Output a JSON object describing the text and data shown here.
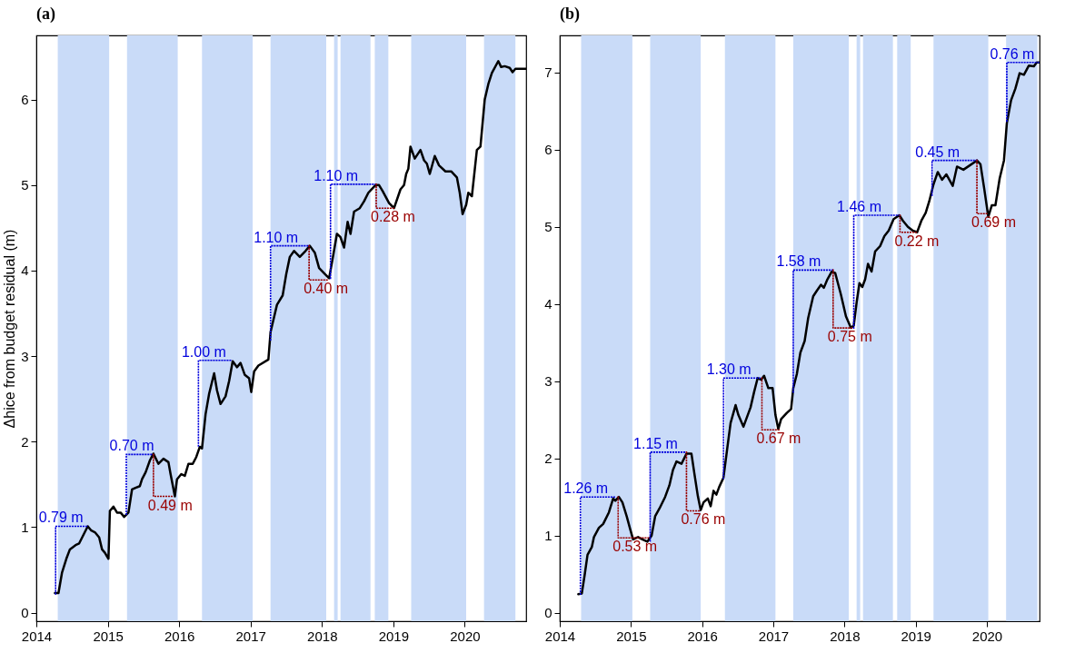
{
  "chart_data": [
    {
      "type": "line",
      "title": "(a)",
      "ylabel": "Δhice from budget residual (m)",
      "xlim": [
        2014,
        2020.86
      ],
      "xticks": [
        2014,
        2015,
        2016,
        2017,
        2018,
        2019,
        2020
      ],
      "ylim": [
        -0.1,
        6.75
      ],
      "yticks": [
        0,
        1,
        2,
        3,
        4,
        5,
        6
      ],
      "grid": false,
      "bands": [
        {
          "axis": "x",
          "from": 2014.3,
          "to": 2015.02,
          "color": "#c9dbf8"
        },
        {
          "axis": "x",
          "from": 2015.27,
          "to": 2015.98,
          "color": "#c9dbf8"
        },
        {
          "axis": "x",
          "from": 2016.32,
          "to": 2017.03,
          "color": "#c9dbf8"
        },
        {
          "axis": "x",
          "from": 2017.28,
          "to": 2018.06,
          "color": "#c9dbf8"
        },
        {
          "axis": "x",
          "from": 2018.17,
          "to": 2018.22,
          "color": "#c9dbf8"
        },
        {
          "axis": "x",
          "from": 2018.26,
          "to": 2018.68,
          "color": "#c9dbf8"
        },
        {
          "axis": "x",
          "from": 2018.74,
          "to": 2018.93,
          "color": "#c9dbf8"
        },
        {
          "axis": "x",
          "from": 2019.25,
          "to": 2020.02,
          "color": "#c9dbf8"
        },
        {
          "axis": "x",
          "from": 2020.27,
          "to": 2020.71,
          "color": "#c9dbf8"
        }
      ],
      "series": [
        {
          "color": "#000000",
          "x": [
            2014.26,
            2014.31,
            2014.36,
            2014.42,
            2014.47,
            2014.55,
            2014.6,
            2014.72,
            2014.77,
            2014.82,
            2014.88,
            2014.92,
            2014.96,
            2015.01,
            2015.03,
            2015.08,
            2015.13,
            2015.18,
            2015.23,
            2015.29,
            2015.34,
            2015.39,
            2015.45,
            2015.48,
            2015.53,
            2015.59,
            2015.64,
            2015.71,
            2015.78,
            2015.85,
            2015.88,
            2015.94,
            2015.97,
            2016.03,
            2016.08,
            2016.13,
            2016.19,
            2016.24,
            2016.29,
            2016.32,
            2016.37,
            2016.42,
            2016.49,
            2016.53,
            2016.58,
            2016.65,
            2016.7,
            2016.75,
            2016.81,
            2016.86,
            2016.92,
            2016.98,
            2017.01,
            2017.05,
            2017.11,
            2017.25,
            2017.28,
            2017.37,
            2017.45,
            2017.5,
            2017.55,
            2017.61,
            2017.69,
            2017.77,
            2017.83,
            2017.9,
            2017.96,
            2018.04,
            2018.1,
            2018.15,
            2018.21,
            2018.26,
            2018.31,
            2018.36,
            2018.4,
            2018.45,
            2018.53,
            2018.59,
            2018.65,
            2018.75,
            2018.8,
            2018.85,
            2018.94,
            2019.01,
            2019.1,
            2019.15,
            2019.18,
            2019.21,
            2019.24,
            2019.3,
            2019.38,
            2019.43,
            2019.47,
            2019.51,
            2019.58,
            2019.64,
            2019.73,
            2019.81,
            2019.89,
            2019.93,
            2019.97,
            2020.02,
            2020.05,
            2020.1,
            2020.17,
            2020.22,
            2020.28,
            2020.33,
            2020.38,
            2020.47,
            2020.51,
            2020.56,
            2020.63,
            2020.67,
            2020.71,
            2020.86
          ],
          "values": [
            0.23,
            0.23,
            0.47,
            0.63,
            0.74,
            0.79,
            0.81,
            1.01,
            0.96,
            0.94,
            0.88,
            0.74,
            0.7,
            0.63,
            1.19,
            1.24,
            1.17,
            1.17,
            1.12,
            1.17,
            1.44,
            1.46,
            1.48,
            1.56,
            1.64,
            1.78,
            1.86,
            1.74,
            1.8,
            1.76,
            1.62,
            1.36,
            1.56,
            1.62,
            1.6,
            1.74,
            1.74,
            1.82,
            1.94,
            1.92,
            2.32,
            2.56,
            2.8,
            2.6,
            2.44,
            2.53,
            2.71,
            2.94,
            2.87,
            2.92,
            2.78,
            2.74,
            2.58,
            2.82,
            2.89,
            2.96,
            3.28,
            3.6,
            3.71,
            3.96,
            4.16,
            4.23,
            4.16,
            4.23,
            4.29,
            4.21,
            4.03,
            3.96,
            3.91,
            4.14,
            4.43,
            4.39,
            4.27,
            4.57,
            4.43,
            4.69,
            4.73,
            4.81,
            4.91,
            5.0,
            5.0,
            4.93,
            4.79,
            4.73,
            4.95,
            5.0,
            5.13,
            5.19,
            5.45,
            5.31,
            5.41,
            5.29,
            5.25,
            5.13,
            5.34,
            5.23,
            5.16,
            5.16,
            5.09,
            4.91,
            4.66,
            4.77,
            4.91,
            4.87,
            5.41,
            5.45,
            6.0,
            6.18,
            6.31,
            6.45,
            6.38,
            6.39,
            6.37,
            6.32,
            6.36,
            6.36
          ]
        },
        {
          "type": "line",
          "color": "#0000dd",
          "line_style": "dotted",
          "x": [
            2014.27,
            2014.27,
            2014.71
          ],
          "values": [
            0.22,
            1.01,
            1.01
          ]
        },
        {
          "type": "line",
          "color": "#0000dd",
          "line_style": "dotted",
          "x": [
            2015.26,
            2015.26,
            2015.64
          ],
          "values": [
            1.15,
            1.85,
            1.85
          ]
        },
        {
          "type": "line",
          "color": "#990000",
          "line_style": "dotted",
          "x": [
            2015.64,
            2015.64,
            2015.93
          ],
          "values": [
            1.85,
            1.36,
            1.36
          ]
        },
        {
          "type": "line",
          "color": "#0000dd",
          "line_style": "dotted",
          "x": [
            2016.27,
            2016.27,
            2016.75
          ],
          "values": [
            1.95,
            2.95,
            2.95
          ]
        },
        {
          "type": "line",
          "color": "#0000dd",
          "line_style": "dotted",
          "x": [
            2017.28,
            2017.28,
            2017.82
          ],
          "values": [
            3.19,
            4.29,
            4.29
          ]
        },
        {
          "type": "line",
          "color": "#990000",
          "line_style": "dotted",
          "x": [
            2017.82,
            2017.82,
            2018.09
          ],
          "values": [
            4.29,
            3.89,
            3.89
          ]
        },
        {
          "type": "line",
          "color": "#0000dd",
          "line_style": "dotted",
          "x": [
            2018.12,
            2018.12,
            2018.76
          ],
          "values": [
            3.91,
            5.01,
            5.01
          ]
        },
        {
          "type": "line",
          "color": "#990000",
          "line_style": "dotted",
          "x": [
            2018.76,
            2018.76,
            2019.01
          ],
          "values": [
            5.01,
            4.73,
            4.73
          ]
        }
      ],
      "annotations": [
        {
          "text": "0.79 m",
          "x": 2014.27,
          "y": 1.01
        },
        {
          "text": "0.70 m",
          "x": 2015.26,
          "y": 1.85
        },
        {
          "text": "0.49 m",
          "x": 2015.64,
          "y": 1.36
        },
        {
          "text": "1.00 m",
          "x": 2016.27,
          "y": 2.95
        },
        {
          "text": "1.10 m",
          "x": 2017.28,
          "y": 4.29
        },
        {
          "text": "0.40 m",
          "x": 2017.82,
          "y": 3.89
        },
        {
          "text": "1.10 m",
          "x": 2018.12,
          "y": 5.01
        },
        {
          "text": "0.28 m",
          "x": 2018.76,
          "y": 4.73
        }
      ]
    },
    {
      "type": "line",
      "title": "(b)",
      "xlim": [
        2014,
        2020.74
      ],
      "xticks": [
        2014,
        2015,
        2016,
        2017,
        2018,
        2019,
        2020
      ],
      "ylim": [
        -0.11,
        7.48
      ],
      "yticks": [
        0,
        1,
        2,
        3,
        4,
        5,
        6,
        7
      ],
      "grid": false,
      "bands": [
        {
          "axis": "x",
          "from": 2014.3,
          "to": 2015.02,
          "color": "#c9dbf8"
        },
        {
          "axis": "x",
          "from": 2015.27,
          "to": 2015.98,
          "color": "#c9dbf8"
        },
        {
          "axis": "x",
          "from": 2016.32,
          "to": 2017.03,
          "color": "#c9dbf8"
        },
        {
          "axis": "x",
          "from": 2017.28,
          "to": 2018.06,
          "color": "#c9dbf8"
        },
        {
          "axis": "x",
          "from": 2018.17,
          "to": 2018.22,
          "color": "#c9dbf8"
        },
        {
          "axis": "x",
          "from": 2018.26,
          "to": 2018.68,
          "color": "#c9dbf8"
        },
        {
          "axis": "x",
          "from": 2018.74,
          "to": 2018.93,
          "color": "#c9dbf8"
        },
        {
          "axis": "x",
          "from": 2019.25,
          "to": 2020.02,
          "color": "#c9dbf8"
        },
        {
          "axis": "x",
          "from": 2020.27,
          "to": 2020.71,
          "color": "#c9dbf8"
        }
      ],
      "series": [
        {
          "color": "#000000",
          "x": [
            2014.26,
            2014.31,
            2014.35,
            2014.39,
            2014.45,
            2014.48,
            2014.55,
            2014.61,
            2014.69,
            2014.75,
            2014.78,
            2014.83,
            2014.88,
            2014.94,
            2014.99,
            2015.03,
            2015.1,
            2015.16,
            2015.23,
            2015.29,
            2015.34,
            2015.4,
            2015.48,
            2015.54,
            2015.59,
            2015.64,
            2015.71,
            2015.78,
            2015.85,
            2015.89,
            2015.94,
            2015.98,
            2016.02,
            2016.08,
            2016.12,
            2016.16,
            2016.2,
            2016.24,
            2016.3,
            2016.35,
            2016.4,
            2016.47,
            2016.51,
            2016.58,
            2016.62,
            2016.68,
            2016.73,
            2016.78,
            2016.83,
            2016.87,
            2016.93,
            2016.99,
            2017.03,
            2017.07,
            2017.11,
            2017.19,
            2017.25,
            2017.28,
            2017.33,
            2017.38,
            2017.44,
            2017.49,
            2017.56,
            2017.61,
            2017.67,
            2017.71,
            2017.76,
            2017.82,
            2017.87,
            2017.95,
            2018.02,
            2018.09,
            2018.13,
            2018.17,
            2018.21,
            2018.25,
            2018.29,
            2018.33,
            2018.38,
            2018.43,
            2018.5,
            2018.56,
            2018.62,
            2018.69,
            2018.77,
            2018.82,
            2018.89,
            2018.96,
            2019.02,
            2019.08,
            2019.14,
            2019.19,
            2019.25,
            2019.31,
            2019.37,
            2019.43,
            2019.52,
            2019.58,
            2019.67,
            2019.75,
            2019.86,
            2019.91,
            2019.96,
            2020.02,
            2020.07,
            2020.12,
            2020.18,
            2020.24,
            2020.28,
            2020.34,
            2020.4,
            2020.46,
            2020.52,
            2020.59,
            2020.66,
            2020.7,
            2020.74
          ],
          "values": [
            0.24,
            0.25,
            0.49,
            0.75,
            0.85,
            0.98,
            1.1,
            1.15,
            1.3,
            1.48,
            1.45,
            1.5,
            1.43,
            1.25,
            1.08,
            0.95,
            0.98,
            0.95,
            0.92,
            1.0,
            1.25,
            1.35,
            1.5,
            1.65,
            1.85,
            1.96,
            1.93,
            2.06,
            2.06,
            1.81,
            1.51,
            1.33,
            1.43,
            1.48,
            1.38,
            1.58,
            1.53,
            1.63,
            1.75,
            2.11,
            2.46,
            2.69,
            2.56,
            2.41,
            2.51,
            2.66,
            2.86,
            3.04,
            3.02,
            3.07,
            2.91,
            2.91,
            2.56,
            2.38,
            2.51,
            2.59,
            2.64,
            2.91,
            3.09,
            3.37,
            3.52,
            3.82,
            4.1,
            4.17,
            4.25,
            4.21,
            4.32,
            4.42,
            4.4,
            4.12,
            3.84,
            3.69,
            3.72,
            4.02,
            4.27,
            4.22,
            4.32,
            4.52,
            4.42,
            4.68,
            4.75,
            4.88,
            4.95,
            5.1,
            5.15,
            5.08,
            5.0,
            4.95,
            4.93,
            5.08,
            5.18,
            5.33,
            5.55,
            5.71,
            5.61,
            5.68,
            5.53,
            5.78,
            5.74,
            5.79,
            5.86,
            5.81,
            5.51,
            5.13,
            5.28,
            5.28,
            5.63,
            5.86,
            6.34,
            6.64,
            6.79,
            6.99,
            6.97,
            7.09,
            7.08,
            7.13,
            7.13
          ]
        },
        {
          "type": "line",
          "color": "#0000dd",
          "line_style": "dotted",
          "x": [
            2014.29,
            2014.29,
            2014.77
          ],
          "values": [
            0.24,
            1.5,
            1.5
          ]
        },
        {
          "type": "line",
          "color": "#990000",
          "line_style": "dotted",
          "x": [
            2014.82,
            2014.82,
            2015.26
          ],
          "values": [
            1.5,
            0.97,
            0.97
          ]
        },
        {
          "type": "line",
          "color": "#0000dd",
          "line_style": "dotted",
          "x": [
            2015.27,
            2015.27,
            2015.78
          ],
          "values": [
            0.93,
            2.08,
            2.08
          ]
        },
        {
          "type": "line",
          "color": "#990000",
          "line_style": "dotted",
          "x": [
            2015.78,
            2015.78,
            2015.98
          ],
          "values": [
            2.08,
            1.32,
            1.32
          ]
        },
        {
          "type": "line",
          "color": "#0000dd",
          "line_style": "dotted",
          "x": [
            2016.3,
            2016.3,
            2016.81
          ],
          "values": [
            1.74,
            3.04,
            3.04
          ]
        },
        {
          "type": "line",
          "color": "#990000",
          "line_style": "dotted",
          "x": [
            2016.84,
            2016.84,
            2017.08
          ],
          "values": [
            3.04,
            2.37,
            2.37
          ]
        },
        {
          "type": "line",
          "color": "#0000dd",
          "line_style": "dotted",
          "x": [
            2017.28,
            2017.28,
            2017.84
          ],
          "values": [
            2.86,
            4.44,
            4.44
          ]
        },
        {
          "type": "line",
          "color": "#990000",
          "line_style": "dotted",
          "x": [
            2017.84,
            2017.84,
            2018.1
          ],
          "values": [
            4.44,
            3.69,
            3.69
          ]
        },
        {
          "type": "line",
          "color": "#0000dd",
          "line_style": "dotted",
          "x": [
            2018.13,
            2018.13,
            2018.78
          ],
          "values": [
            3.69,
            5.15,
            5.15
          ]
        },
        {
          "type": "line",
          "color": "#990000",
          "line_style": "dotted",
          "x": [
            2018.78,
            2018.78,
            2019.01
          ],
          "values": [
            5.15,
            4.93,
            4.93
          ]
        },
        {
          "type": "line",
          "color": "#0000dd",
          "line_style": "dotted",
          "x": [
            2019.23,
            2019.23,
            2019.86
          ],
          "values": [
            5.41,
            5.86,
            5.86
          ]
        },
        {
          "type": "line",
          "color": "#990000",
          "line_style": "dotted",
          "x": [
            2019.86,
            2019.86,
            2020.02
          ],
          "values": [
            5.86,
            5.17,
            5.17
          ]
        },
        {
          "type": "line",
          "color": "#0000dd",
          "line_style": "dotted",
          "x": [
            2020.28,
            2020.28,
            2020.74
          ],
          "values": [
            6.37,
            7.13,
            7.13
          ]
        }
      ],
      "annotations": [
        {
          "text": "1.26 m",
          "x": 2014.29,
          "y": 1.5
        },
        {
          "text": "0.53 m",
          "x": 2014.82,
          "y": 0.97
        },
        {
          "text": "1.15 m",
          "x": 2015.27,
          "y": 2.08
        },
        {
          "text": "0.76 m",
          "x": 2015.78,
          "y": 1.32
        },
        {
          "text": "1.30 m",
          "x": 2016.3,
          "y": 3.04
        },
        {
          "text": "0.67 m",
          "x": 2016.84,
          "y": 2.37
        },
        {
          "text": "1.58 m",
          "x": 2017.28,
          "y": 4.44
        },
        {
          "text": "0.75 m",
          "x": 2017.84,
          "y": 3.69
        },
        {
          "text": "1.46 m",
          "x": 2018.13,
          "y": 5.15
        },
        {
          "text": "0.22 m",
          "x": 2018.78,
          "y": 4.93
        },
        {
          "text": "0.45 m",
          "x": 2019.23,
          "y": 5.86
        },
        {
          "text": "0.69 m",
          "x": 2019.86,
          "y": 5.17
        },
        {
          "text": "0.76 m",
          "x": 2020.28,
          "y": 7.13
        }
      ]
    }
  ]
}
